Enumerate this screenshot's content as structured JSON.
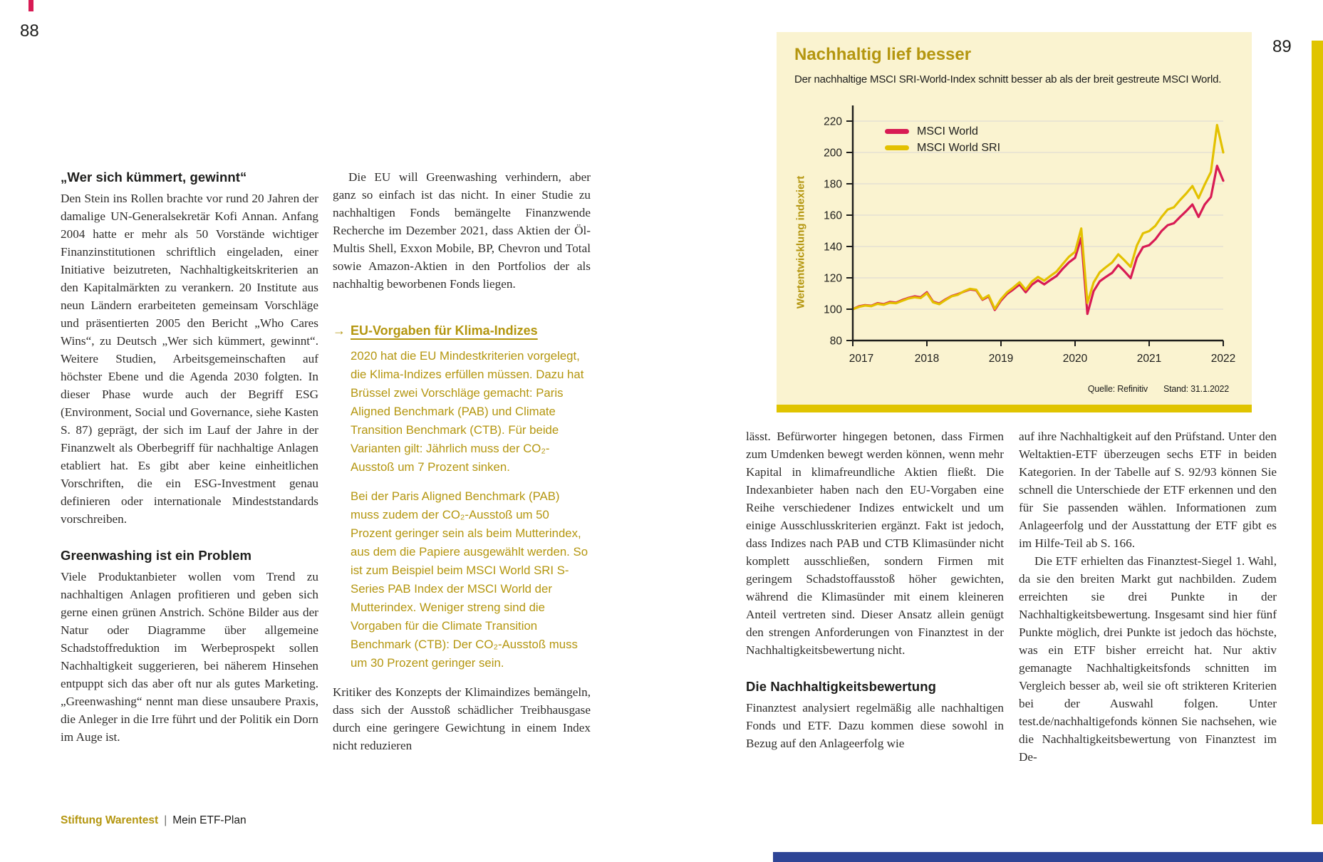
{
  "page_left": {
    "number": "88",
    "col1": {
      "heading1": "„Wer sich kümmert, gewinnt“",
      "para1": "Den Stein ins Rollen brachte vor rund 20 Jahren der damalige UN-Generalsekretär Kofi Annan. Anfang 2004 hatte er mehr als 50 Vorstände wichtiger Finanzinstitutionen schriftlich eingeladen, einer Initiative beizutreten, Nachhaltigkeitskriterien an den Kapitalmärkten zu verankern. 20 Institute aus neun Ländern erarbeiteten gemeinsam Vorschläge und präsentierten 2005 den Bericht „Who Cares Wins“, zu Deutsch „Wer sich kümmert, gewinnt“. Weitere Studien, Arbeitsgemeinschaften auf höchster Ebene und die Agenda 2030 folgten. In dieser Phase wurde auch der Begriff ESG (Environment, Social und Governance, siehe Kasten S. 87) geprägt, der sich im Lauf der Jahre in der Finanzwelt als Oberbegriff für nachhaltige Anlagen etabliert hat. Es gibt aber keine einheitlichen Vorschriften, die ein ESG-Investment genau definieren oder internationale Mindeststandards vorschreiben.",
      "heading2": "Greenwashing ist ein Problem",
      "para2": "Viele Produktanbieter wollen vom Trend zu nachhaltigen Anlagen profitieren und geben sich gerne einen grünen Anstrich. Schöne Bilder aus der Natur oder Diagramme über allgemeine Schadstoffreduktion im Werbeprospekt sollen Nachhaltigkeit suggerieren, bei näherem Hinsehen entpuppt sich das aber oft nur als gutes Marketing. „Greenwashing“ nennt man diese unsaubere Praxis, die Anleger in die Irre führt und der Politik ein Dorn im Auge ist."
    },
    "col2": {
      "para1": "Die EU will Greenwashing verhindern, aber ganz so einfach ist das nicht. In einer Studie zu nachhaltigen Fonds bemängelte Finanzwende Recherche im Dezember 2021, dass Aktien der Öl-Multis Shell, Exxon Mobile, BP, Chevron und Total sowie Amazon-Aktien in den Portfolios der als nachhaltig beworbenen Fonds liegen.",
      "callout": {
        "arrow": "→",
        "heading": "EU-Vorgaben für Klima-Indizes",
        "para1": "2020 hat die EU Mindestkriterien vorgelegt, die Klima-Indizes erfüllen müssen. Dazu hat Brüssel zwei Vorschläge gemacht: Paris Aligned Benchmark (PAB) und Climate Transition Benchmark (CTB). Für beide Varianten gilt: Jährlich muss der CO₂-Ausstoß um 7 Prozent sinken.",
        "para2": "Bei der Paris Aligned Benchmark (PAB) muss zudem der CO₂-Ausstoß um 50 Prozent geringer sein als beim Mutterindex, aus dem die Papiere ausgewählt werden. So ist zum Beispiel beim MSCI World SRI S-Series PAB Index der MSCI World der Mutterindex. Weniger streng sind die Vorgaben für die Climate Transition Benchmark (CTB): Der CO₂-Ausstoß muss um 30 Prozent geringer sein."
      },
      "para2": "Kritiker des Konzepts der Klimaindizes bemängeln, dass sich der Ausstoß schädlicher Treibhausgase durch eine geringere Gewichtung in einem Index nicht reduzieren"
    },
    "footer": {
      "brand": "Stiftung Warentest",
      "separator": "|",
      "title": "Mein ETF-Plan"
    }
  },
  "page_right": {
    "number": "89",
    "col3": {
      "para1": "lässt. Befürworter hingegen betonen, dass Firmen zum Umdenken bewegt werden können, wenn mehr Kapital in klimafreundliche Aktien fließt. Die Indexanbieter haben nach den EU-Vorgaben eine Reihe verschiedener Indizes entwickelt und um einige Ausschlusskriterien ergänzt. Fakt ist jedoch, dass Indizes nach PAB und CTB Klimasünder nicht komplett ausschließen, sondern Firmen mit geringem Schadstoffausstoß höher gewichten, während die Klimasünder mit einem kleineren Anteil vertreten sind. Dieser Ansatz allein genügt den strengen Anforderungen von Finanztest in der Nachhaltigkeitsbewertung nicht.",
      "heading": "Die Nachhaltigkeitsbewertung",
      "para2": "Finanztest analysiert regelmäßig alle nachhaltigen Fonds und ETF. Dazu kommen diese sowohl in Bezug auf den Anlageerfolg wie"
    },
    "col4": {
      "para1": "auf ihre Nachhaltigkeit auf den Prüfstand. Unter den Weltaktien-ETF überzeugen sechs ETF in beiden Kategorien. In der Tabelle auf S. 92/93 können Sie schnell die Unterschiede der ETF erkennen und den für Sie passenden wählen. Informationen zum Anlageerfolg und der Ausstattung der ETF gibt es im Hilfe-Teil ab S. 166.",
      "para2": "Die ETF erhielten das Finanztest-Siegel 1. Wahl, da sie den breiten Markt gut nachbilden. Zudem erreichten sie drei Punkte in der Nachhaltigkeitsbewertung. Insgesamt sind hier fünf Punkte möglich, drei Punkte ist jedoch das höchste, was ein ETF bisher erreicht hat. Nur aktiv gemanagte Nachhaltigkeitsfonds schnitten im Vergleich besser ab, weil sie oft strikteren Kriterien bei der Auswahl folgen. Unter test.de/nachhaltigefonds können Sie nachsehen, wie die Nachhaltigkeitsbewertung von Finanztest im De-"
    }
  },
  "chart_data": {
    "type": "line",
    "title": "Nachhaltig lief besser",
    "subtitle": "Der nachhaltige MSCI SRI-World-Index schnitt besser ab als der breit gestreute MSCI World.",
    "ylabel": "Wertentwicklung indexiert",
    "source": "Quelle: Refinitiv",
    "as_of": "Stand: 31.1.2022",
    "x_unit": "month",
    "x_start": "2017-01",
    "x_end": "2022-01",
    "x_tick_indices": [
      0,
      12,
      24,
      36,
      48,
      60
    ],
    "x_tick_labels": [
      "2017",
      "2018",
      "2019",
      "2020",
      "2021",
      "2022"
    ],
    "ylim": [
      80,
      230
    ],
    "yticks": [
      80,
      100,
      120,
      140,
      160,
      180,
      200,
      220
    ],
    "grid": true,
    "grid_color": "#eae5d2",
    "legend_position": "top-left-inside",
    "series": [
      {
        "name": "MSCI World",
        "color": "#d81b54",
        "values": [
          100,
          101.8,
          102.6,
          102.2,
          103.8,
          103.2,
          104.6,
          104.2,
          105.8,
          107.2,
          108.2,
          107.6,
          110.8,
          104.8,
          103.6,
          106.2,
          108.4,
          109.6,
          111.2,
          112.6,
          112,
          106,
          108.2,
          99.5,
          105.5,
          109.8,
          112.6,
          115.8,
          110.8,
          115.6,
          118.4,
          115.8,
          118.6,
          121.2,
          125.8,
          129.8,
          132.8,
          145.5,
          97,
          111.5,
          117.8,
          120.6,
          123.2,
          128.2,
          124.2,
          119.8,
          132.8,
          139.6,
          140.8,
          144.6,
          149.8,
          153.6,
          154.8,
          158.8,
          162.6,
          166.8,
          158.8,
          166.8,
          171.6,
          191.5,
          182
        ]
      },
      {
        "name": "MSCI World SRI",
        "color": "#e3c100",
        "values": [
          100,
          101.5,
          102.3,
          101.9,
          103.4,
          102.8,
          104.1,
          103.8,
          105.3,
          106.8,
          107.6,
          107.1,
          110.2,
          104.4,
          103.2,
          105.8,
          108.2,
          109.2,
          111.4,
          113,
          112.4,
          106.4,
          108.8,
          100.2,
          106.4,
          110.8,
          113.8,
          117.2,
          112.4,
          117.6,
          120.6,
          118.2,
          121.2,
          124,
          128.8,
          133.4,
          136.6,
          151.5,
          104,
          117,
          123.6,
          126.8,
          129.8,
          135,
          131.2,
          127,
          140.6,
          148.4,
          149.8,
          153.2,
          158.8,
          163.6,
          165,
          169.6,
          173.8,
          178.6,
          170.8,
          179.6,
          187.6,
          217.5,
          200
        ]
      }
    ]
  },
  "colors": {
    "accent_gold": "#b4960f",
    "bar_gold": "#e0c400",
    "bar_blue": "#2e4596",
    "mark_red": "#d81b54",
    "chart_background": "#faf3d0"
  }
}
